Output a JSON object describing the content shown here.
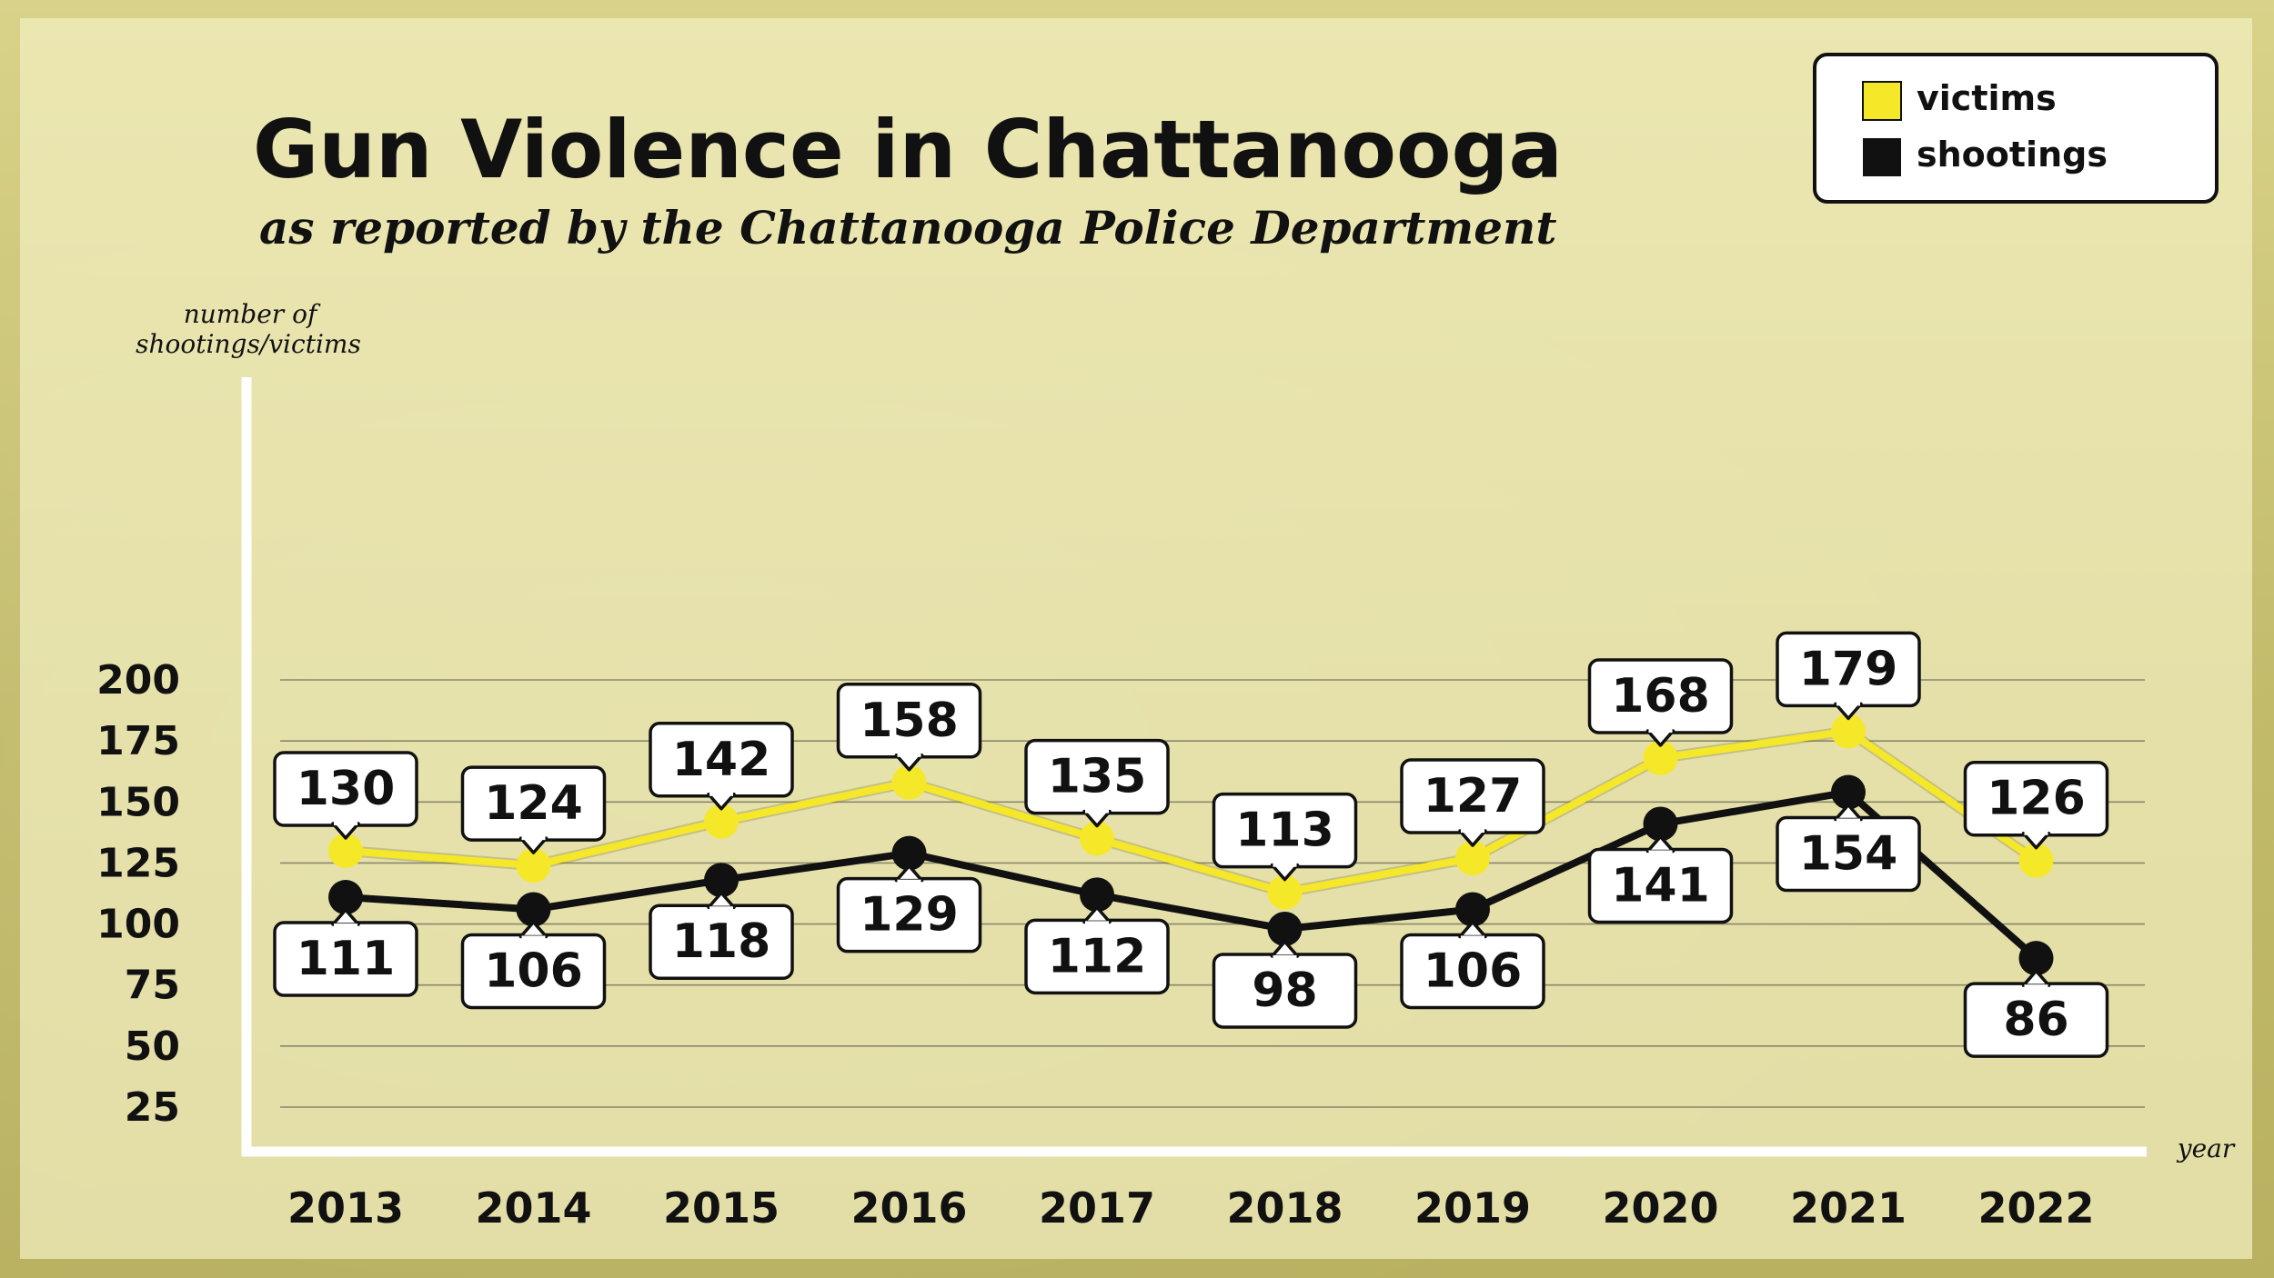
{
  "title": "Gun Violence in Chattanooga",
  "subtitle": "as reported by the Chattanooga Police Department",
  "ylabel_line1": "number of",
  "ylabel_line2": "shootings/victims",
  "xlabel": "year",
  "colors": {
    "victims": "#f5e829",
    "shootings": "#111111",
    "panel": "#f3efc0",
    "frame": "#d8d074"
  },
  "legend": [
    {
      "label": "victims",
      "color": "#f5e829"
    },
    {
      "label": "shootings",
      "color": "#111111"
    }
  ],
  "chart_data": {
    "type": "line",
    "title": "Gun Violence in Chattanooga",
    "subtitle": "as reported by the Chattanooga Police Department",
    "xlabel": "year",
    "ylabel": "number of shootings/victims",
    "x": [
      "2013",
      "2014",
      "2015",
      "2016",
      "2017",
      "2018",
      "2019",
      "2020",
      "2021",
      "2022"
    ],
    "yticks": [
      25,
      50,
      75,
      100,
      125,
      150,
      175,
      200
    ],
    "ylim": [
      0,
      200
    ],
    "grid": true,
    "legend_position": "top-right",
    "series": [
      {
        "name": "victims",
        "color": "#f5e829",
        "values": [
          130,
          124,
          142,
          158,
          135,
          113,
          127,
          168,
          179,
          126
        ]
      },
      {
        "name": "shootings",
        "color": "#111111",
        "values": [
          111,
          106,
          118,
          129,
          112,
          98,
          106,
          141,
          154,
          86
        ]
      }
    ]
  }
}
